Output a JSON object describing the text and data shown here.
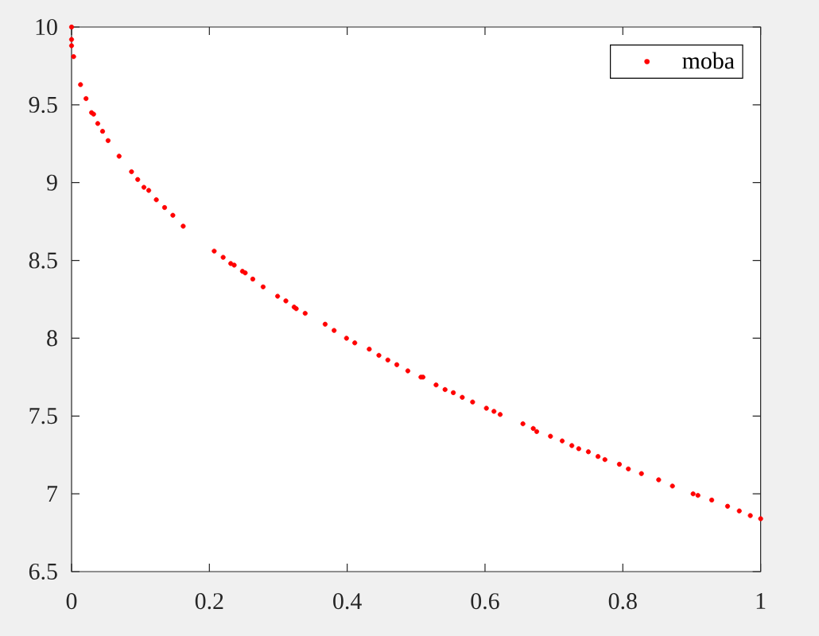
{
  "chart_data": {
    "type": "scatter",
    "legend": "top right",
    "marker": "circle",
    "xlim": [
      0,
      1
    ],
    "ylim": [
      6.5,
      10
    ],
    "xticks": [
      0,
      0.2,
      0.4,
      0.6,
      0.8,
      1
    ],
    "yticks": [
      6.5,
      7,
      7.5,
      8,
      8.5,
      9,
      9.5,
      10
    ],
    "x": [
      0,
      0,
      0,
      0.003,
      0.013,
      0.021,
      0.029,
      0.032,
      0.038,
      0.045,
      0.053,
      0.069,
      0.087,
      0.096,
      0.105,
      0.112,
      0.123,
      0.135,
      0.147,
      0.162,
      0.207,
      0.22,
      0.231,
      0.236,
      0.248,
      0.252,
      0.263,
      0.278,
      0.299,
      0.311,
      0.323,
      0.326,
      0.339,
      0.368,
      0.381,
      0.399,
      0.411,
      0.432,
      0.446,
      0.459,
      0.472,
      0.488,
      0.507,
      0.51,
      0.529,
      0.542,
      0.554,
      0.567,
      0.582,
      0.602,
      0.613,
      0.622,
      0.655,
      0.67,
      0.675,
      0.695,
      0.712,
      0.726,
      0.736,
      0.75,
      0.764,
      0.774,
      0.795,
      0.808,
      0.827,
      0.852,
      0.872,
      0.902,
      0.909,
      0.929,
      0.952,
      0.969,
      0.985,
      1.0
    ],
    "series": [
      {
        "name": "moba",
        "color": "#ff0000",
        "values": [
          10.0,
          9.92,
          9.88,
          9.81,
          9.63,
          9.54,
          9.45,
          9.44,
          9.38,
          9.33,
          9.27,
          9.17,
          9.07,
          9.02,
          8.97,
          8.95,
          8.89,
          8.84,
          8.79,
          8.72,
          8.56,
          8.52,
          8.48,
          8.47,
          8.43,
          8.42,
          8.38,
          8.33,
          8.27,
          8.24,
          8.2,
          8.19,
          8.16,
          8.09,
          8.05,
          8.0,
          7.97,
          7.93,
          7.89,
          7.86,
          7.83,
          7.79,
          7.75,
          7.75,
          7.7,
          7.67,
          7.65,
          7.62,
          7.59,
          7.55,
          7.53,
          7.51,
          7.45,
          7.42,
          7.4,
          7.37,
          7.34,
          7.31,
          7.29,
          7.27,
          7.24,
          7.22,
          7.19,
          7.16,
          7.13,
          7.09,
          7.05,
          7.0,
          6.99,
          6.96,
          6.92,
          6.89,
          6.86,
          6.84
        ]
      }
    ]
  }
}
